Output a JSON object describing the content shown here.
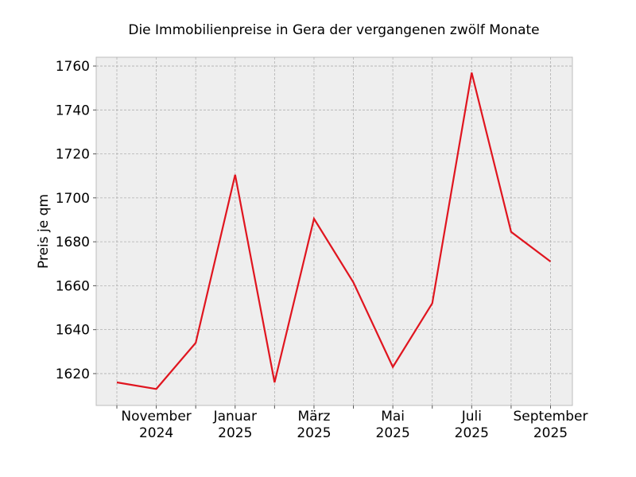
{
  "chart_data": {
    "type": "line",
    "title": "Die Immobilienpreise in Gera der vergangenen zwölf Monate",
    "ylabel": "Preis je qm",
    "xlabel": "",
    "ylim": [
      1605.5,
      1764
    ],
    "yticks": [
      1620,
      1640,
      1660,
      1680,
      1700,
      1720,
      1740,
      1760
    ],
    "x": [
      "2024-10",
      "2024-11",
      "2024-12",
      "2025-01",
      "2025-02",
      "2025-03",
      "2025-04",
      "2025-05",
      "2025-06",
      "2025-07",
      "2025-08",
      "2025-09"
    ],
    "xtick_labels": [
      {
        "x": "2024-11",
        "line1": "November",
        "line2": "2024"
      },
      {
        "x": "2025-01",
        "line1": "Januar",
        "line2": "2025"
      },
      {
        "x": "2025-03",
        "line1": "März",
        "line2": "2025"
      },
      {
        "x": "2025-05",
        "line1": "Mai",
        "line2": "2025"
      },
      {
        "x": "2025-07",
        "line1": "Juli",
        "line2": "2025"
      },
      {
        "x": "2025-09",
        "line1": "September",
        "line2": "2025"
      }
    ],
    "series": [
      {
        "values": [
          1616,
          1613,
          1634,
          1710.5,
          1616,
          1690.5,
          1661.5,
          1623,
          1652,
          1757,
          1684.5,
          1671
        ],
        "color": "#e0151f"
      }
    ],
    "grid": true,
    "legend": "none"
  }
}
